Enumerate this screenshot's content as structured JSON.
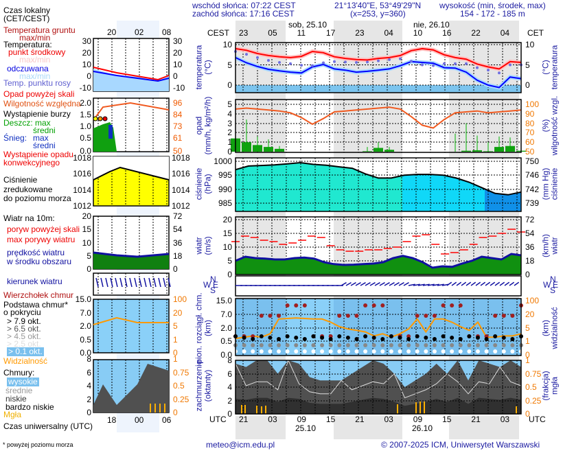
{
  "header": {
    "sunrise": "wschód słońca: 07:22 CEST",
    "sunset": "zachód słońca: 17:16 CEST",
    "coords": "21°13'40\"E, 53°49'29\"N",
    "grid": "(x=253,  y=360)",
    "elev_label": "wysokość (min, środek, max)",
    "elev_value": "154 - 172 - 185 m",
    "day1": "sob, 25.10",
    "day2": "nie, 26.10",
    "tz_left": "CEST",
    "tz_right": "CET",
    "local_ticks": [
      "23",
      "05",
      "11",
      "17",
      "23",
      "04",
      "10",
      "16",
      "22",
      "04"
    ]
  },
  "bottom": {
    "tz": "UTC",
    "utc_ticks": [
      "21",
      "03",
      "09",
      "15",
      "21",
      "03",
      "09",
      "15",
      "21",
      "03"
    ],
    "date1": "25.10",
    "date2": "26.10",
    "email": "meteo@icm.edu.pl",
    "copyright": "© 2007-2025 ICM, Uniwersytet Warszawski"
  },
  "axis_titles": {
    "temp": [
      "temperatura",
      "(°C)"
    ],
    "precip": [
      "opad",
      "(mm/h, kg/m²/h)"
    ],
    "rh": [
      "wilgotność wzgl.",
      "(%)"
    ],
    "pressure": [
      "ciśnienie",
      "(hPa)"
    ],
    "pressure_mm": [
      "ciśnienie",
      "(mm Hg)"
    ],
    "wind": [
      "wiatr",
      "(m/s)"
    ],
    "wind_kmh": [
      "wiatr",
      "(km/h)"
    ],
    "cloudbase": [
      "pion. rozciągł. chm.",
      "(km)"
    ],
    "visibility": [
      "widzialność",
      "(km)"
    ],
    "cloudcover": [
      "zachmurzenie",
      "(oktanty)"
    ],
    "fog": [
      "mgła",
      "(frakcja)"
    ],
    "compass": {
      "n": "N",
      "w": "W",
      "s": "S",
      "e": "E"
    }
  },
  "ticks": {
    "temp": [
      "10",
      "5",
      "0"
    ],
    "precip": [
      "5",
      "4",
      "3",
      "2",
      "1",
      "0"
    ],
    "rh": [
      "100",
      "90",
      "80",
      "70",
      "60",
      "50"
    ],
    "pressure": [
      "1000",
      "995",
      "990",
      "985"
    ],
    "pressure_mm": [
      "750",
      "746",
      "742",
      "739"
    ],
    "wind": [
      "20",
      "15",
      "10",
      "5",
      "0"
    ],
    "wind_kmh": [
      "72",
      "54",
      "36",
      "18",
      "0"
    ],
    "cloudbase": [
      "15.0",
      "7.0",
      "2.0",
      "0.5",
      "0.0"
    ],
    "visibility": [
      "100",
      "20",
      "5",
      "1",
      "0"
    ],
    "cloudcover": [
      "8",
      "6",
      "4",
      "2",
      "0"
    ],
    "fog": [
      "1",
      "0.75",
      "0.5",
      "0.25",
      "0"
    ]
  },
  "legend": {
    "local_time": [
      "Czas lokalny",
      "(CET/CEST)"
    ],
    "local_ticks": [
      "20",
      "02",
      "08"
    ],
    "utc_ticks": [
      "18",
      "00",
      "06"
    ],
    "ground_temp": [
      "Temperatura gruntu",
      "max/min"
    ],
    "temperature": "Temperatura:",
    "mid_point": "punkt środkowy",
    "maxmin": "max/min",
    "feels_like": "odczuwana",
    "dew_point": "Temp. punktu rosy",
    "precip_over": "Opad powyżej skali",
    "humidity": "Wilgotność względna",
    "storm": "Wystąpienie burzy",
    "rain": "Deszcz: max",
    "mean": "średni",
    "snow": "Śnieg:",
    "max": "max",
    "conv": [
      "Wystąpienie opadu",
      "konwekcyjnego"
    ],
    "pressure": [
      "Ciśnienie",
      "zredukowane",
      "do poziomu morza"
    ],
    "wind10": "Wiatr na 10m:",
    "gust_over": "poryw powyżej skali",
    "gust_max": "max porywy wiatru",
    "wind_speed": [
      "prędkość wiatru",
      "w środku obszaru"
    ],
    "wind_dir": "kierunek wiatru",
    "cloud_top": "Wierzchołek chmur",
    "cloud_base": [
      "Podstawa chmur*",
      "o pokryciu"
    ],
    "okt": [
      "> 7.9 okt.",
      "> 6.5 okt.",
      "> 4.5 okt.",
      "> 2.5 okt.",
      "> 0.1 okt."
    ],
    "visibility": "Widzialność",
    "clouds": "Chmury:",
    "high": "wysokie",
    "middle": "średnie",
    "low": "niskie",
    "very_low": "bardzo niskie",
    "fog": "Mgła",
    "utc": "Czas uniwersalny (UTC)",
    "footnote": "* powyżej poziomu morza",
    "t_ticks": [
      "30",
      "20",
      "10",
      "0",
      "-10"
    ],
    "p_ticks": [
      "2.0",
      "1.5",
      "1.0",
      "0.5",
      "0.0"
    ],
    "rh_ticks": [
      "96",
      "84",
      "73",
      "61",
      "50"
    ],
    "pr_ticks": [
      "1018",
      "1016",
      "1014",
      "1012"
    ],
    "w_ticks": [
      "20",
      "15",
      "10",
      "5",
      "0"
    ],
    "wk_ticks": [
      "72",
      "54",
      "36",
      "18",
      "0"
    ],
    "cb_ticks": [
      "15.0",
      "7.0",
      "2.0",
      "0.5",
      "0.0"
    ],
    "v_ticks": [
      "100",
      "20",
      "5",
      "1",
      "0"
    ],
    "cc_ticks": [
      "8",
      "6",
      "4",
      "2",
      "0"
    ],
    "f_ticks": [
      "1",
      "0.75",
      "0.5",
      "0.25",
      "0"
    ]
  },
  "colors": {
    "temp": "#ff0000",
    "feels": "#0000ff",
    "dew": "#7070e0",
    "rh": "#f05a20",
    "rain": "#00a000",
    "pressure_line": "#000000",
    "gust": "#ff0000",
    "wind": "#1010a0",
    "vis": "#ff9900",
    "cloud_top": "#a02020",
    "night": "#e6e6e6",
    "sky": "#88ccf5"
  },
  "chart_data": {
    "type": "line",
    "hours_utc_start": "24.10 19:30",
    "temperature": [
      9,
      8.6,
      7.8,
      7.3,
      7,
      6.8,
      7.1,
      8.3,
      8,
      7,
      6.6,
      6.3,
      6.2,
      6.6,
      6.8,
      7.3,
      8.5,
      9,
      8.7,
      7.5,
      6.8,
      6.4,
      5.2,
      4.5,
      4,
      5.8,
      5.6
    ],
    "feels_like": [
      6.8,
      5.5,
      4.6,
      3.9,
      3.5,
      3.2,
      3,
      4.5,
      5.1,
      4,
      3.7,
      3.2,
      3.4,
      3.7,
      4,
      4.8,
      5.8,
      5.6,
      5.4,
      4.3,
      4.2,
      3.2,
      1.2,
      0,
      -0.6,
      2,
      1.6
    ],
    "dew_point": [
      8.3,
      7.6,
      6.8,
      6.1,
      5.6,
      5.3,
      4.9,
      4.8,
      5.5,
      5.8,
      5.7,
      5.6,
      5.7,
      6,
      6.3,
      6.5,
      5.9,
      5,
      4.8,
      5.3,
      5.3,
      5.3,
      4.3,
      3.7,
      3,
      5,
      5
    ],
    "relative_humidity": [
      95,
      96,
      95,
      94,
      93,
      91,
      86,
      79,
      85,
      92,
      93,
      94,
      95,
      96,
      97,
      95,
      87,
      78,
      75,
      84,
      91,
      92,
      93,
      91,
      92,
      93,
      94
    ],
    "precip_mean": [
      1.4,
      1,
      0.7,
      0.5,
      0.3,
      0,
      0,
      0,
      0,
      0,
      0,
      0,
      0.05,
      0.4,
      0.2,
      0,
      0,
      0,
      0,
      0,
      0,
      0.1,
      0.15,
      0.05,
      0.5,
      0.6,
      0.1
    ],
    "precip_max": [
      2.4,
      3.4,
      1.6,
      1.3,
      0.6,
      0,
      0,
      0,
      0,
      0,
      0,
      0,
      0.5,
      1.0,
      0.5,
      0,
      0,
      0,
      0,
      0,
      1.9,
      3.0,
      1.7,
      1.0,
      1.6,
      1.5,
      0.5
    ],
    "pressure_hpa": [
      997,
      998.3,
      998.5,
      998.7,
      999.1,
      999.5,
      998.9,
      998.6,
      998,
      997.5,
      995.5,
      994,
      994,
      995,
      995.3,
      995.3,
      995,
      994,
      992.5,
      990.5,
      988.5,
      988,
      989
    ],
    "gust_max": [
      12,
      14,
      13.5,
      12.5,
      12,
      11,
      11.5,
      12.5,
      14,
      13.5,
      10.5,
      9,
      8.5,
      8.5,
      9,
      9,
      9.5,
      10,
      12,
      14,
      14.5,
      11,
      7.5,
      8,
      9,
      11,
      13.5,
      14,
      15,
      16.5,
      15.5
    ],
    "wind_speed": [
      5,
      6.5,
      6,
      5.8,
      5.5,
      5.5,
      6,
      6.2,
      5.8,
      4.5,
      3.8,
      3.5,
      3.6,
      3.8,
      4,
      4.5,
      6,
      6.8,
      6,
      4.5,
      2.5,
      3,
      2.8,
      4,
      5,
      6.5,
      6,
      5.5,
      7.5,
      7
    ],
    "visibility_km": [
      3,
      3.5,
      4,
      3.5,
      5,
      20,
      21,
      22,
      21,
      20,
      20,
      15,
      10,
      8,
      7,
      6,
      4,
      5,
      3.5,
      5,
      8,
      20,
      6,
      20,
      20,
      15,
      10,
      7,
      15,
      3.5,
      3.5,
      4,
      4,
      5
    ],
    "cloud_cover_okt": [
      7.5,
      7,
      8,
      8,
      6,
      8,
      7.5,
      5.5,
      5,
      5,
      5,
      6,
      7,
      8,
      7.5,
      6,
      4,
      5,
      6,
      7.5,
      6,
      8,
      5,
      8,
      7.5,
      7,
      8,
      7
    ]
  }
}
